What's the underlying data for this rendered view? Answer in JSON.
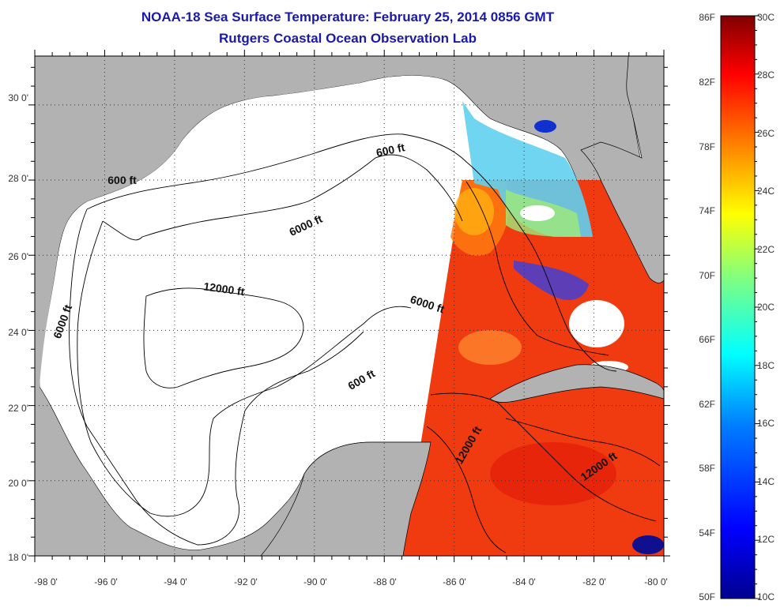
{
  "title": {
    "line1": "NOAA-18 Sea Surface Temperature:  February 25, 2014 0856 GMT",
    "line2": "Rutgers Coastal Ocean Observation Lab"
  },
  "map": {
    "longitude_labels": [
      "-98 0'",
      "-96 0'",
      "-94 0'",
      "-92 0'",
      "-90 0'",
      "-88 0'",
      "-86 0'",
      "-84 0'",
      "-82 0'",
      "-80 0'"
    ],
    "latitude_labels": [
      "30 0'",
      "28 0'",
      "26 0'",
      "24 0'",
      "22 0'",
      "20 0'",
      "18 0'"
    ],
    "extent": {
      "lon_min": -98,
      "lon_max": -80,
      "lat_min": 18,
      "lat_max": 31.3
    },
    "contour_labels": [
      {
        "text": "600 ft",
        "lon": -87.8,
        "lat": 28.7
      },
      {
        "text": "600 ft",
        "lon": -95.5,
        "lat": 27.9
      },
      {
        "text": "6000 ft",
        "lon": -90.2,
        "lat": 26.7
      },
      {
        "text": "6000 ft",
        "lon": -97.1,
        "lat": 24.2
      },
      {
        "text": "12000 ft",
        "lon": -92.6,
        "lat": 25.0
      },
      {
        "text": "6000 ft",
        "lon": -86.8,
        "lat": 24.6
      },
      {
        "text": "600 ft",
        "lon": -88.6,
        "lat": 22.6
      },
      {
        "text": "12000 ft",
        "lon": -85.5,
        "lat": 20.9
      },
      {
        "text": "12000 ft",
        "lon": -81.8,
        "lat": 20.3
      }
    ],
    "colors": {
      "land": "#b2b2b2",
      "ocean_nodata": "#ffffff",
      "grid": "#333333"
    }
  },
  "colorbar": {
    "fahrenheit_labels": [
      "86F",
      "82F",
      "78F",
      "74F",
      "70F",
      "66F",
      "62F",
      "58F",
      "54F",
      "50F"
    ],
    "celsius_labels": [
      "30C",
      "28C",
      "26C",
      "24C",
      "22C",
      "20C",
      "18C",
      "16C",
      "14C",
      "12C",
      "10C"
    ],
    "range_c": [
      10,
      30
    ],
    "colors": [
      "#00008f",
      "#0000ff",
      "#0080ff",
      "#00ffff",
      "#80ff80",
      "#ffff00",
      "#ff8000",
      "#ff0000",
      "#800000"
    ]
  }
}
